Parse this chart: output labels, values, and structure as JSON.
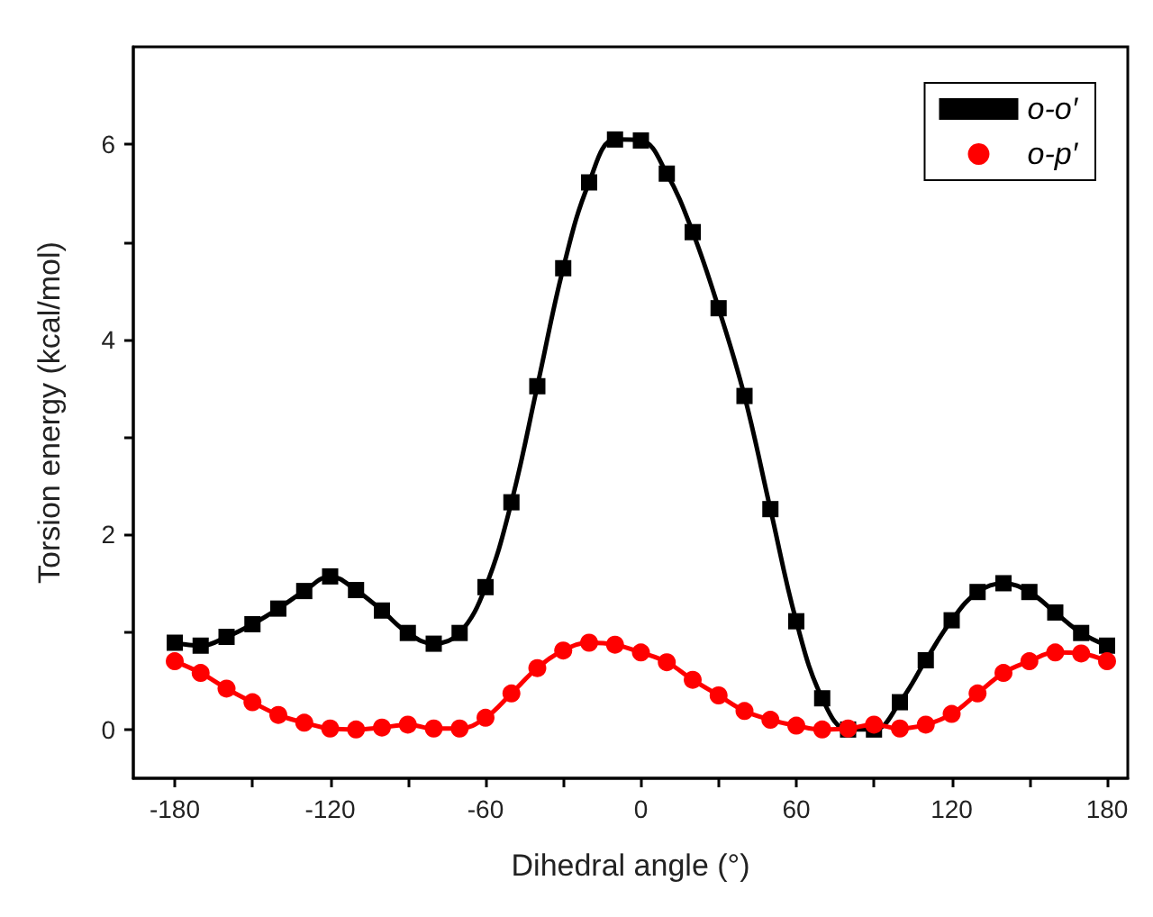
{
  "chart_data": {
    "type": "line",
    "xlabel": "Dihedral angle (°)",
    "ylabel": "Torsion energy (kcal/mol)",
    "x": [
      -180,
      -170,
      -160,
      -150,
      -140,
      -130,
      -120,
      -110,
      -100,
      -90,
      -80,
      -70,
      -60,
      -50,
      -40,
      -30,
      -20,
      -10,
      0,
      10,
      20,
      30,
      40,
      50,
      60,
      70,
      80,
      90,
      100,
      110,
      120,
      130,
      140,
      150,
      160,
      170,
      180
    ],
    "series": [
      {
        "name": "o-o′",
        "color": "#000000",
        "marker": "square",
        "values": [
          0.89,
          0.86,
          0.95,
          1.08,
          1.24,
          1.42,
          1.57,
          1.43,
          1.22,
          0.99,
          0.88,
          0.99,
          1.46,
          2.33,
          3.52,
          4.73,
          5.61,
          6.05,
          6.04,
          5.7,
          5.1,
          4.32,
          3.42,
          2.26,
          1.11,
          0.32,
          0.0,
          0.0,
          0.28,
          0.71,
          1.12,
          1.41,
          1.5,
          1.41,
          1.2,
          0.99,
          0.86
        ]
      },
      {
        "name": "o-p′",
        "color": "#ff0000",
        "marker": "circle",
        "values": [
          0.7,
          0.58,
          0.42,
          0.28,
          0.15,
          0.07,
          0.01,
          0.0,
          0.02,
          0.05,
          0.01,
          0.01,
          0.12,
          0.37,
          0.63,
          0.81,
          0.89,
          0.87,
          0.79,
          0.69,
          0.51,
          0.35,
          0.19,
          0.1,
          0.04,
          0.0,
          0.01,
          0.05,
          0.01,
          0.05,
          0.16,
          0.37,
          0.58,
          0.7,
          0.79,
          0.78,
          0.7
        ]
      }
    ],
    "xlim": [
      -196,
      188
    ],
    "xticks": [
      -180,
      {
        "value": -150,
        "label": null
      },
      -120,
      {
        "value": -90,
        "label": null
      },
      -60,
      {
        "value": -30,
        "label": null
      },
      0,
      {
        "value": 30,
        "label": null
      },
      60,
      {
        "value": 90,
        "label": null
      },
      120,
      {
        "value": 150,
        "label": null
      },
      180
    ],
    "ylim": [
      -0.5,
      7
    ],
    "yticks": [
      0,
      {
        "value": 1,
        "label": null
      },
      2,
      {
        "value": 3,
        "label": null
      },
      4,
      {
        "value": 5,
        "label": null
      },
      6
    ],
    "grid": false,
    "legend": "top right",
    "line_style": "solid"
  }
}
